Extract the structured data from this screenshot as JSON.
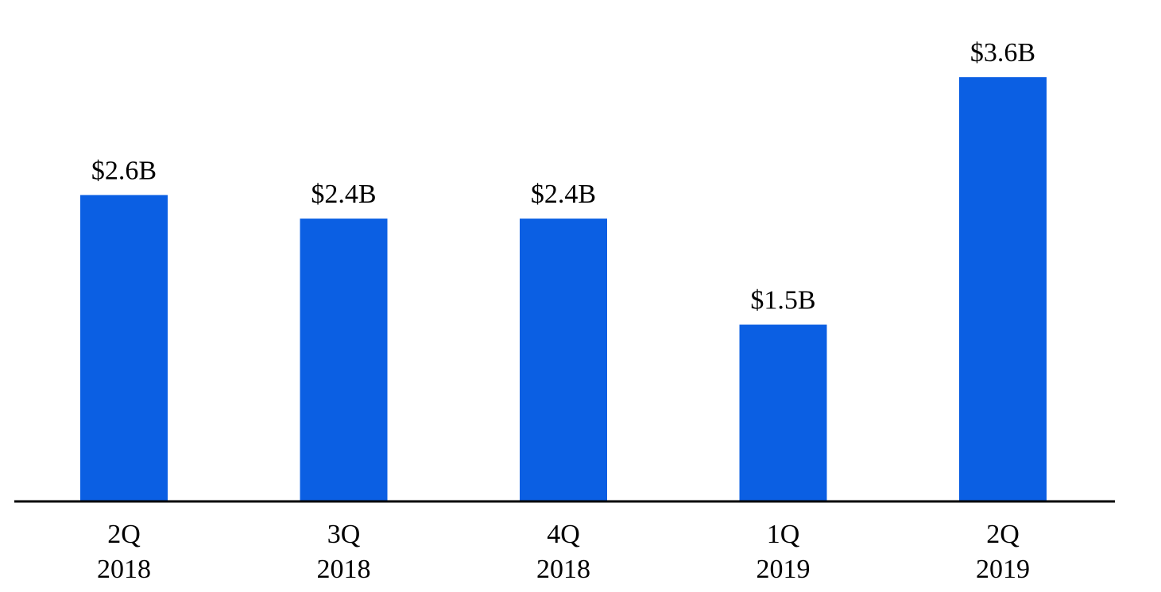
{
  "chart_data": {
    "type": "bar",
    "categories": [
      {
        "line1": "2Q",
        "line2": "2018"
      },
      {
        "line1": "3Q",
        "line2": "2018"
      },
      {
        "line1": "4Q",
        "line2": "2018"
      },
      {
        "line1": "1Q",
        "line2": "2019"
      },
      {
        "line1": "2Q",
        "line2": "2019"
      }
    ],
    "values": [
      2.6,
      2.4,
      2.4,
      1.5,
      3.6
    ],
    "data_labels": [
      "$2.6B",
      "$2.4B",
      "$2.4B",
      "$1.5B",
      "$3.6B"
    ],
    "ylim": [
      0,
      4.0
    ],
    "grid": false,
    "legend": "none",
    "colors": {
      "bar": "#0B5FE3",
      "axis": "#000000",
      "text": "#000000"
    }
  }
}
